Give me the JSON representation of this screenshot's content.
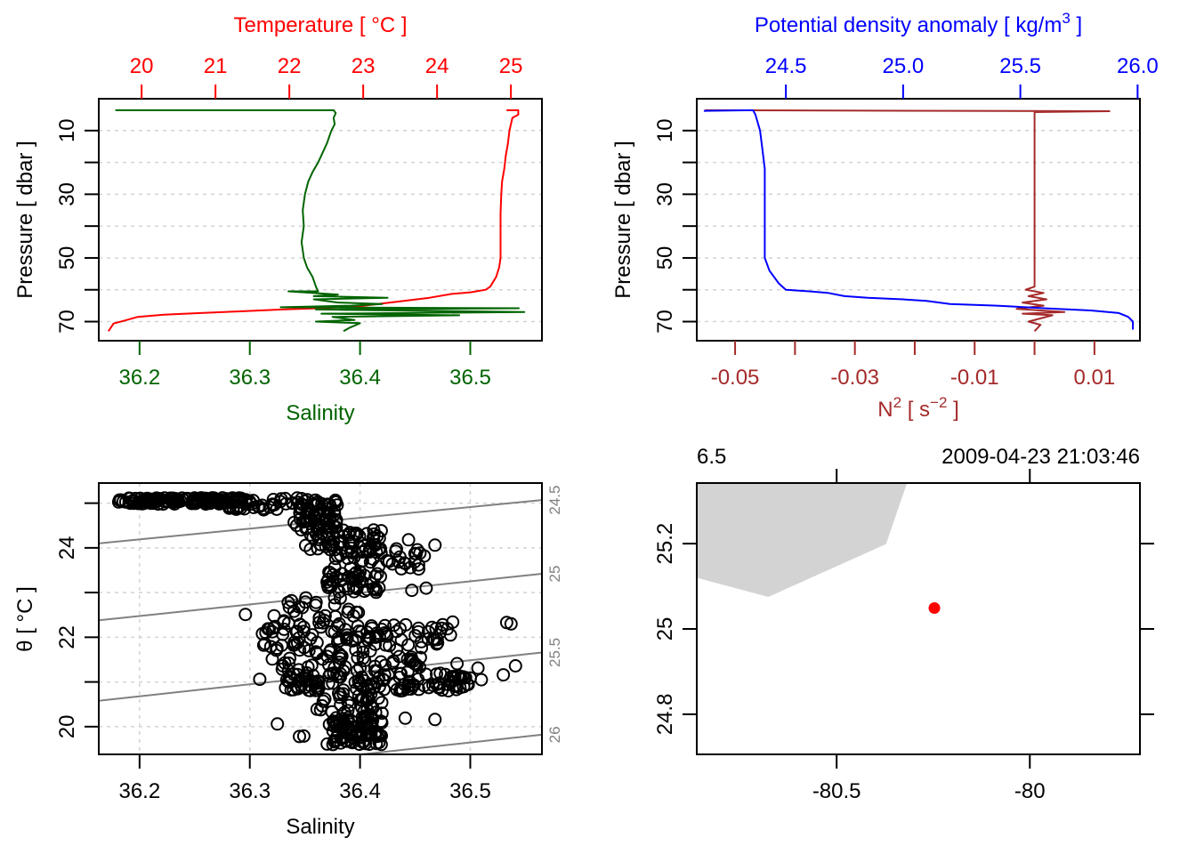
{
  "colors": {
    "temperature": "#ff0000",
    "salinity": "#006400",
    "density": "#0000ff",
    "n2": "#a52a2a",
    "grid": "#d3d3d3",
    "isopycnal": "#808080",
    "land": "#d3d3d3",
    "station": "#ff0000",
    "axis": "#000000"
  },
  "chart_data": [
    {
      "id": "profile-ts",
      "type": "line",
      "title": "",
      "ylabel": "Pressure [ dbar ]",
      "ylim": [
        76,
        0
      ],
      "yticks": [
        10,
        20,
        30,
        40,
        50,
        60,
        70
      ],
      "ytick_labels": [
        "10",
        "",
        "30",
        "",
        "50",
        "",
        "70"
      ],
      "grid": true,
      "top_axis": {
        "label": "Temperature [ °C ]",
        "lim": [
          19.42,
          25.42
        ],
        "ticks": [
          20,
          21,
          22,
          23,
          24,
          25
        ],
        "tick_labels": [
          "20",
          "21",
          "22",
          "23",
          "24",
          "25"
        ]
      },
      "bottom_axis": {
        "label": "Salinity",
        "lim": [
          36.163,
          36.565
        ],
        "ticks": [
          36.2,
          36.3,
          36.4,
          36.5
        ],
        "tick_labels": [
          "36.2",
          "36.3",
          "36.4",
          "36.5"
        ]
      },
      "series": [
        {
          "name": "Temperature",
          "axis": "top",
          "points": [
            [
              24.94,
              3.6
            ],
            [
              25.1,
              3.6
            ],
            [
              25.1,
              5
            ],
            [
              25.02,
              6
            ],
            [
              24.98,
              10
            ],
            [
              24.96,
              14
            ],
            [
              24.93,
              18
            ],
            [
              24.91,
              22
            ],
            [
              24.88,
              26
            ],
            [
              24.87,
              30
            ],
            [
              24.86,
              36
            ],
            [
              24.86,
              42
            ],
            [
              24.86,
              50
            ],
            [
              24.84,
              53
            ],
            [
              24.8,
              56
            ],
            [
              24.72,
              59
            ],
            [
              24.66,
              60
            ],
            [
              24.45,
              60.8
            ],
            [
              24.2,
              61.3
            ],
            [
              23.9,
              62.5
            ],
            [
              23.55,
              63.5
            ],
            [
              23.2,
              64.5
            ],
            [
              22.9,
              65.3
            ],
            [
              22.4,
              65.8
            ],
            [
              21.9,
              66.2
            ],
            [
              21.3,
              66.8
            ],
            [
              20.8,
              67.3
            ],
            [
              20.3,
              67.8
            ],
            [
              19.95,
              68.5
            ],
            [
              19.75,
              69.8
            ],
            [
              19.62,
              70.6
            ],
            [
              19.58,
              72
            ],
            [
              19.55,
              73
            ]
          ]
        },
        {
          "name": "Salinity",
          "axis": "bottom",
          "points": [
            [
              36.178,
              3.6
            ],
            [
              36.376,
              3.6
            ],
            [
              36.378,
              4.5
            ],
            [
              36.376,
              6
            ],
            [
              36.377,
              8
            ],
            [
              36.374,
              10
            ],
            [
              36.37,
              14
            ],
            [
              36.366,
              17
            ],
            [
              36.362,
              20
            ],
            [
              36.357,
              23
            ],
            [
              36.353,
              26
            ],
            [
              36.35,
              30
            ],
            [
              36.348,
              35
            ],
            [
              36.349,
              40
            ],
            [
              36.347,
              45
            ],
            [
              36.349,
              50
            ],
            [
              36.352,
              53
            ],
            [
              36.357,
              56
            ],
            [
              36.36,
              59
            ],
            [
              36.362,
              60.5
            ],
            [
              36.335,
              60.5
            ],
            [
              36.38,
              61.5
            ],
            [
              36.358,
              62
            ],
            [
              36.425,
              62.5
            ],
            [
              36.358,
              63
            ],
            [
              36.38,
              64
            ],
            [
              36.42,
              64.5
            ],
            [
              36.392,
              65
            ],
            [
              36.328,
              65.5
            ],
            [
              36.544,
              65.8
            ],
            [
              36.36,
              66.2
            ],
            [
              36.549,
              67
            ],
            [
              36.365,
              67.5
            ],
            [
              36.49,
              68
            ],
            [
              36.375,
              68.5
            ],
            [
              36.395,
              69.5
            ],
            [
              36.36,
              70
            ],
            [
              36.4,
              70.5
            ],
            [
              36.39,
              72
            ],
            [
              36.385,
              73
            ]
          ]
        }
      ]
    },
    {
      "id": "profile-density-n2",
      "type": "line",
      "title": "",
      "ylabel": "Pressure [ dbar ]",
      "ylim": [
        76,
        0
      ],
      "yticks": [
        10,
        20,
        30,
        40,
        50,
        60,
        70
      ],
      "ytick_labels": [
        "10",
        "",
        "30",
        "",
        "50",
        "",
        "70"
      ],
      "grid": true,
      "top_axis": {
        "label": "Potential density anomaly [ kg/m3 ]",
        "lim": [
          24.12,
          26.01
        ],
        "ticks": [
          24.5,
          25.0,
          25.5,
          26.0
        ],
        "tick_labels": [
          "24.5",
          "25.0",
          "25.5",
          "26.0"
        ]
      },
      "bottom_axis": {
        "label": "N2 [ s-2 ]",
        "lim": [
          -0.0564,
          0.0176
        ],
        "ticks": [
          -0.05,
          -0.04,
          -0.03,
          -0.02,
          -0.01,
          0.0,
          0.01
        ],
        "tick_labels": [
          "-0.05",
          "",
          "-0.03",
          "",
          "-0.01",
          "",
          "0.01"
        ]
      },
      "series": [
        {
          "name": "Potential density anomaly",
          "axis": "top",
          "points": [
            [
              24.15,
              3.8
            ],
            [
              24.36,
              3.6
            ],
            [
              24.37,
              5
            ],
            [
              24.39,
              10
            ],
            [
              24.4,
              16
            ],
            [
              24.41,
              22
            ],
            [
              24.41,
              30
            ],
            [
              24.41,
              40
            ],
            [
              24.41,
              50
            ],
            [
              24.43,
              54
            ],
            [
              24.47,
              58
            ],
            [
              24.5,
              60
            ],
            [
              24.6,
              60.5
            ],
            [
              24.68,
              61
            ],
            [
              24.75,
              62
            ],
            [
              24.85,
              62.5
            ],
            [
              25.0,
              63
            ],
            [
              25.1,
              63.5
            ],
            [
              25.2,
              64.5
            ],
            [
              25.4,
              65
            ],
            [
              25.6,
              65.8
            ],
            [
              25.8,
              66.5
            ],
            [
              25.92,
              67.3
            ],
            [
              25.96,
              68.5
            ],
            [
              25.98,
              70
            ],
            [
              25.98,
              72.5
            ]
          ]
        },
        {
          "name": "N2",
          "axis": "bottom",
          "points": [
            [
              -0.055,
              3.6
            ],
            [
              0.0125,
              3.9
            ],
            [
              0.0,
              4.2
            ],
            [
              0.0,
              10
            ],
            [
              0.0,
              30
            ],
            [
              0.0,
              50
            ],
            [
              0.0,
              59
            ],
            [
              -0.0015,
              60
            ],
            [
              0.0015,
              61
            ],
            [
              -0.001,
              62
            ],
            [
              0.002,
              63
            ],
            [
              -0.002,
              64
            ],
            [
              0.0015,
              65
            ],
            [
              -0.003,
              66
            ],
            [
              0.005,
              67
            ],
            [
              -0.002,
              67.5
            ],
            [
              0.003,
              68
            ],
            [
              -0.001,
              70
            ],
            [
              0.001,
              71
            ],
            [
              0.0,
              73
            ]
          ]
        }
      ]
    },
    {
      "id": "ts-diagram",
      "type": "scatter",
      "title": "",
      "xlabel": "Salinity",
      "ylabel": "θ [ °C ]",
      "xlim": [
        36.163,
        36.565
      ],
      "ylim": [
        19.38,
        25.45
      ],
      "xticks": [
        36.2,
        36.3,
        36.4,
        36.5
      ],
      "xtick_labels": [
        "36.2",
        "36.3",
        "36.4",
        "36.5"
      ],
      "yticks": [
        20,
        21,
        22,
        23,
        24,
        25
      ],
      "ytick_labels": [
        "20",
        "",
        "22",
        "",
        "24",
        ""
      ],
      "grid": true,
      "isopycnals": [
        {
          "label": "24.5",
          "y_left": 24.1,
          "y_right": 25.07
        },
        {
          "label": "25",
          "y_left": 22.38,
          "y_right": 23.42
        },
        {
          "label": "25.5",
          "y_left": 20.58,
          "y_right": 21.66
        },
        {
          "label": "26",
          "y_left": 18.74,
          "y_right": 19.82
        }
      ],
      "clusters": [
        {
          "s": [
            36.18,
            36.3
          ],
          "t": [
            24.98,
            25.12
          ],
          "n": 140
        },
        {
          "s": [
            36.28,
            36.38
          ],
          "t": [
            24.85,
            25.12
          ],
          "n": 60
        },
        {
          "s": [
            36.34,
            36.38
          ],
          "t": [
            24.4,
            24.85
          ],
          "n": 45
        },
        {
          "s": [
            36.35,
            36.42
          ],
          "t": [
            23.9,
            24.4
          ],
          "n": 60
        },
        {
          "s": [
            36.37,
            36.46
          ],
          "t": [
            23.5,
            24.0
          ],
          "n": 35
        },
        {
          "s": [
            36.37,
            36.42
          ],
          "t": [
            23.0,
            23.5
          ],
          "n": 45
        },
        {
          "s": [
            36.33,
            36.4
          ],
          "t": [
            22.3,
            22.95
          ],
          "n": 30
        },
        {
          "s": [
            36.31,
            36.48
          ],
          "t": [
            21.8,
            22.3
          ],
          "n": 80
        },
        {
          "s": [
            36.32,
            36.46
          ],
          "t": [
            21.2,
            21.8
          ],
          "n": 60
        },
        {
          "s": [
            36.33,
            36.5
          ],
          "t": [
            20.8,
            21.2
          ],
          "n": 120
        },
        {
          "s": [
            36.36,
            36.42
          ],
          "t": [
            20.2,
            20.8
          ],
          "n": 40
        },
        {
          "s": [
            36.37,
            36.42
          ],
          "t": [
            19.6,
            20.2
          ],
          "n": 90
        }
      ],
      "outliers": [
        [
          36.296,
          22.51
        ],
        [
          36.322,
          22.48
        ],
        [
          36.319,
          21.79
        ],
        [
          36.309,
          21.06
        ],
        [
          36.325,
          20.06
        ],
        [
          36.33,
          21.36
        ],
        [
          36.398,
          22.25
        ],
        [
          36.444,
          24.18
        ],
        [
          36.468,
          24.06
        ],
        [
          36.484,
          22.34
        ],
        [
          36.482,
          22.05
        ],
        [
          36.454,
          21.33
        ],
        [
          36.488,
          21.41
        ],
        [
          36.5,
          21.09
        ],
        [
          36.51,
          21.05
        ],
        [
          36.53,
          21.16
        ],
        [
          36.541,
          21.36
        ],
        [
          36.533,
          22.33
        ],
        [
          36.537,
          22.3
        ],
        [
          36.468,
          20.16
        ],
        [
          36.441,
          20.19
        ],
        [
          36.46,
          23.1
        ],
        [
          36.447,
          23.05
        ],
        [
          36.345,
          19.78
        ],
        [
          36.349,
          19.79
        ],
        [
          36.355,
          21.97
        ],
        [
          36.453,
          22.2
        ],
        [
          36.47,
          21.95
        ],
        [
          36.48,
          20.94
        ],
        [
          36.507,
          21.31
        ]
      ]
    },
    {
      "id": "station-map",
      "type": "scatter",
      "title": "",
      "xlabel": "",
      "ylabel": "",
      "xlim": [
        -80.862,
        -79.715
      ],
      "ylim": [
        24.706,
        25.342
      ],
      "xticks": [
        -80.5,
        -80.0
      ],
      "xtick_labels": [
        "-80.5",
        "-80"
      ],
      "yticks": [
        24.8,
        25.0,
        25.2
      ],
      "ytick_labels": [
        "24.8",
        "25",
        "25.2"
      ],
      "grid": false,
      "land_polygon": [
        [
          -80.862,
          25.342
        ],
        [
          -80.318,
          25.342
        ],
        [
          -80.372,
          25.199
        ],
        [
          -80.677,
          25.075
        ],
        [
          -80.862,
          25.12
        ]
      ],
      "station": {
        "lon": -80.247,
        "lat": 25.049
      },
      "top_left_label": "6.5",
      "top_right_label": "2009-04-23 21:03:46"
    }
  ]
}
